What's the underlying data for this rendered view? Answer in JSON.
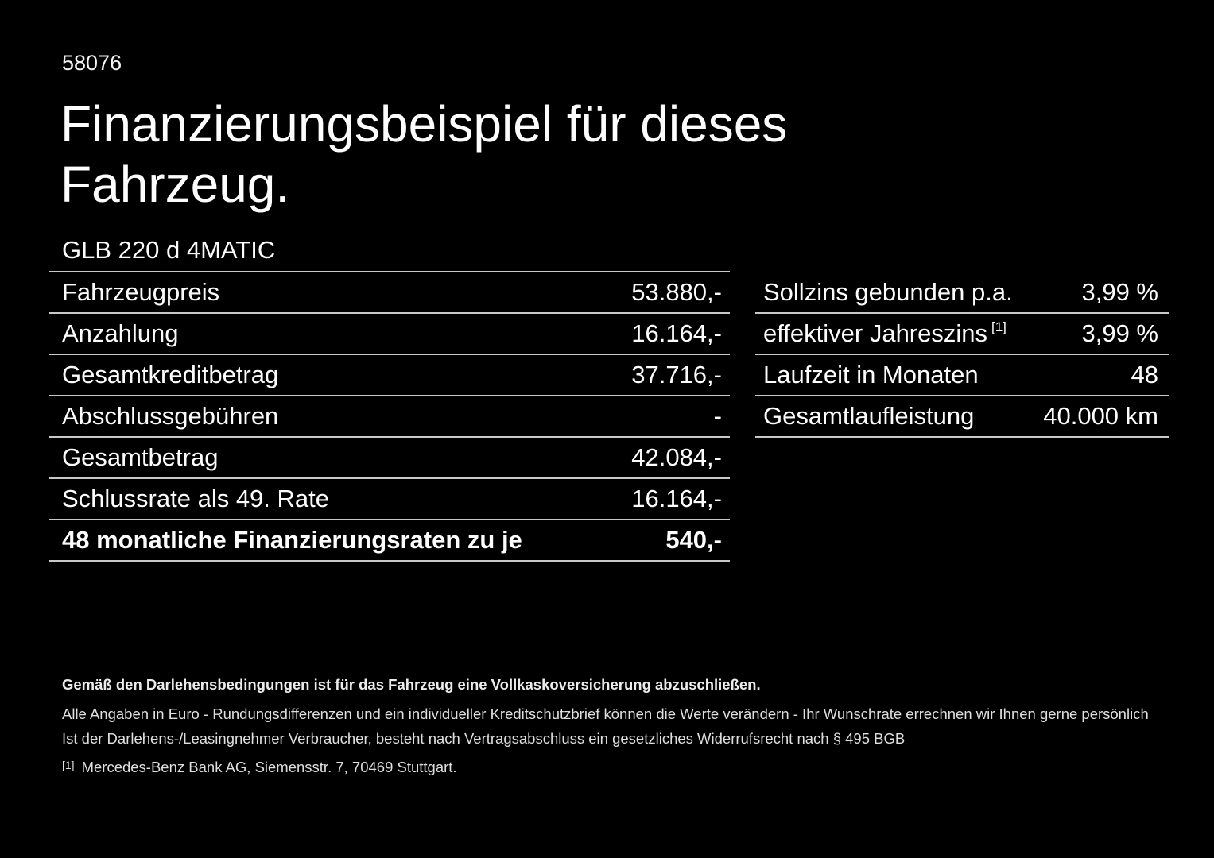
{
  "doc_number": "58076",
  "title": {
    "line1": "Finanzierungsbeispiel für dieses",
    "line2": "Fahrzeug."
  },
  "vehicle_model": "GLB 220 d 4MATIC",
  "finance_table": {
    "rows": [
      {
        "label": "Fahrzeugpreis",
        "value": "53.880,-"
      },
      {
        "label": "Anzahlung",
        "value": "16.164,-"
      },
      {
        "label": "Gesamtkreditbetrag",
        "value": "37.716,-"
      },
      {
        "label": "Abschlussgebühren",
        "value": "-"
      },
      {
        "label": "Gesamtbetrag",
        "value": "42.084,-"
      },
      {
        "label": "Schlussrate als 49. Rate",
        "value": "16.164,-"
      },
      {
        "label": "48 monatliche Finanzierungsraten zu je",
        "value": "540,-"
      }
    ]
  },
  "conditions_table": {
    "rows": [
      {
        "label": "Sollzins gebunden p.a.",
        "sup": "",
        "value": "3,99 %"
      },
      {
        "label": "effektiver Jahreszins",
        "sup": "[1]",
        "value": "3,99 %"
      },
      {
        "label": "Laufzeit in Monaten",
        "sup": "",
        "value": "48"
      },
      {
        "label": "Gesamtlaufleistung",
        "sup": "",
        "value": "40.000 km"
      }
    ]
  },
  "footer": {
    "insurance_note": "Gemäß den Darlehensbedingungen ist für das Fahrzeug eine Vollkaskoversicherung abzuschließen.",
    "euro_note": "Alle Angaben in Euro - Rundungsdifferenzen und ein individueller Kreditschutzbrief können die Werte verändern - Ihr Wunschrate errechnen wir Ihnen gerne persönlich",
    "withdrawal_note": "Ist der Darlehens-/Leasingnehmer Verbraucher, besteht nach Vertragsabschluss ein gesetzliches Widerrufsrecht nach § 495 BGB",
    "footnote_marker": "[1]",
    "footnote_text": "Mercedes-Benz Bank AG, Siemensstr. 7, 70469 Stuttgart."
  },
  "colors": {
    "background": "#000000",
    "text": "#ffffff",
    "divider": "#c8c8c8"
  }
}
